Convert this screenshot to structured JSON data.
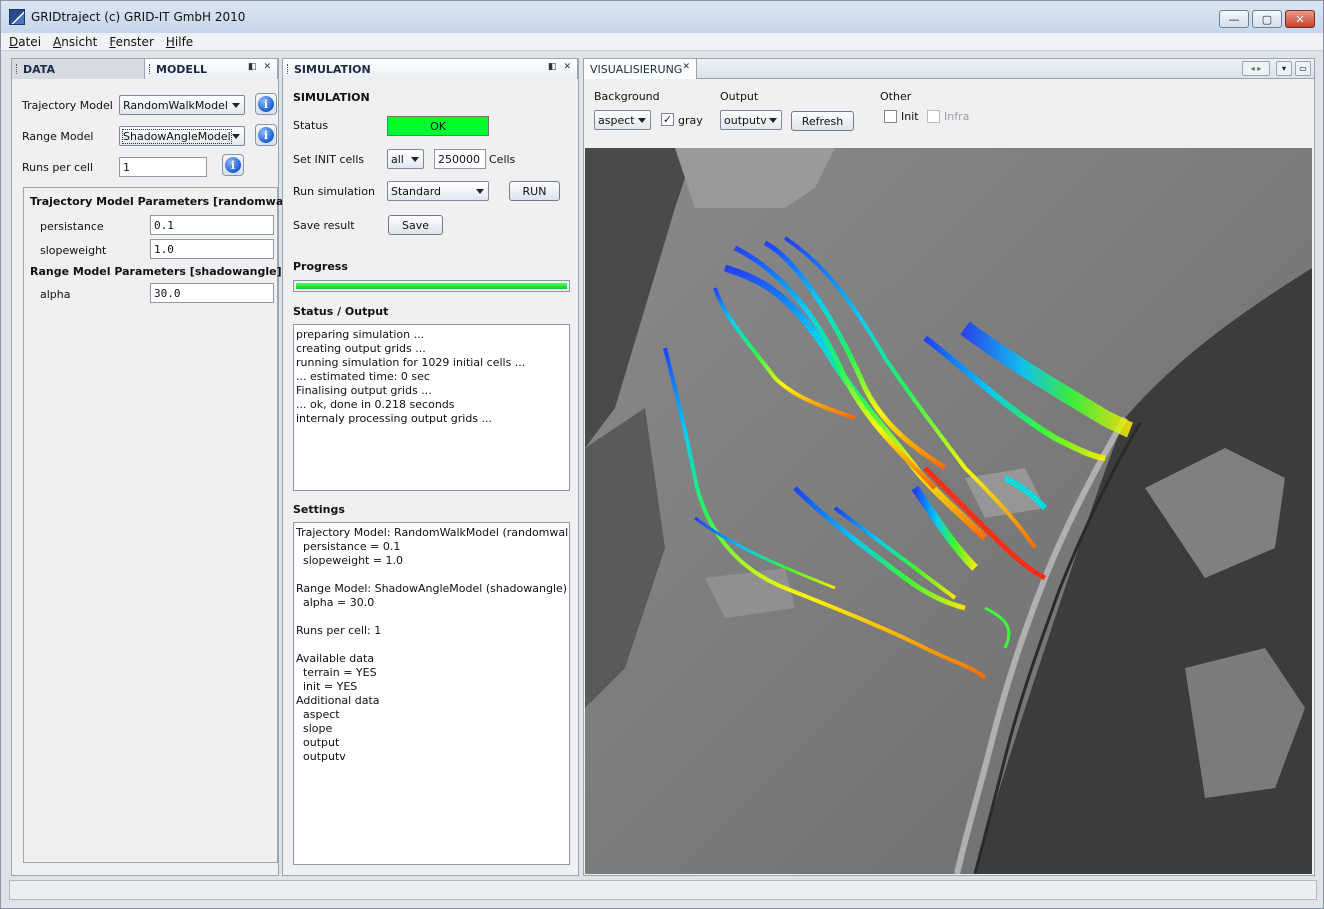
{
  "window": {
    "title": "GRIDtraject  (c) GRID-IT GmbH 2010",
    "controls": {
      "minimize": "—",
      "maximize": "▢",
      "close": "✕"
    }
  },
  "menu": {
    "items": [
      "Datei",
      "Ansicht",
      "Fenster",
      "Hilfe"
    ]
  },
  "left_panel": {
    "tabs": {
      "data": "DATA",
      "modell": "MODELL"
    },
    "trajectory_model_label": "Trajectory Model",
    "trajectory_model_value": "RandomWalkModel",
    "range_model_label": "Range Model",
    "range_model_value": "ShadowAngleModel",
    "runs_per_cell_label": "Runs per cell",
    "runs_per_cell_value": "1",
    "traj_params_title": "Trajectory Model Parameters [randomwalk]",
    "persistance_label": "persistance",
    "persistance_value": "0.1",
    "slopeweight_label": "slopeweight",
    "slopeweight_value": "1.0",
    "range_params_title": "Range Model Parameters [shadowangle]",
    "alpha_label": "alpha",
    "alpha_value": "30.0"
  },
  "sim_panel": {
    "tab": "SIMULATION",
    "heading": "SIMULATION",
    "status_label": "Status",
    "status_value": "OK",
    "set_init_label": "Set INIT cells",
    "set_init_select": "all",
    "set_init_count": "250000",
    "cells_label": "Cells",
    "run_sim_label": "Run simulation",
    "run_sim_mode": "Standard",
    "run_button": "RUN",
    "save_result_label": "Save result",
    "save_button": "Save",
    "progress_label": "Progress",
    "progress_value": 1.0,
    "status_output_label": "Status / Output",
    "output_text": "preparing simulation ...\ncreating output grids ...\nrunning simulation for 1029 initial cells ...\n... estimated time: 0 sec\nFinalising output grids ...\n... ok, done in 0.218 seconds\ninternaly processing output grids ...",
    "settings_label": "Settings",
    "settings_text": "Trajectory Model: RandomWalkModel (randomwalk)\n  persistance = 0.1\n  slopeweight = 1.0\n\nRange Model: ShadowAngleModel (shadowangle)\n  alpha = 30.0\n\nRuns per cell: 1\n\nAvailable data\n  terrain = YES\n  init = YES\nAdditional data\n  aspect\n  slope\n  output\n  outputv"
  },
  "vis_panel": {
    "tab": "VISUALISIERUNG",
    "background_label": "Background",
    "background_value": "aspect",
    "gray_label": "gray",
    "gray_checked": true,
    "output_label": "Output",
    "output_value": "outputv",
    "refresh_button": "Refresh",
    "other_label": "Other",
    "init_label": "Init",
    "infra_label": "Infra"
  },
  "colors": {
    "status_ok": "#00ff2a",
    "progress": "#13cc24",
    "panel_bg": "#f0f0f0"
  }
}
